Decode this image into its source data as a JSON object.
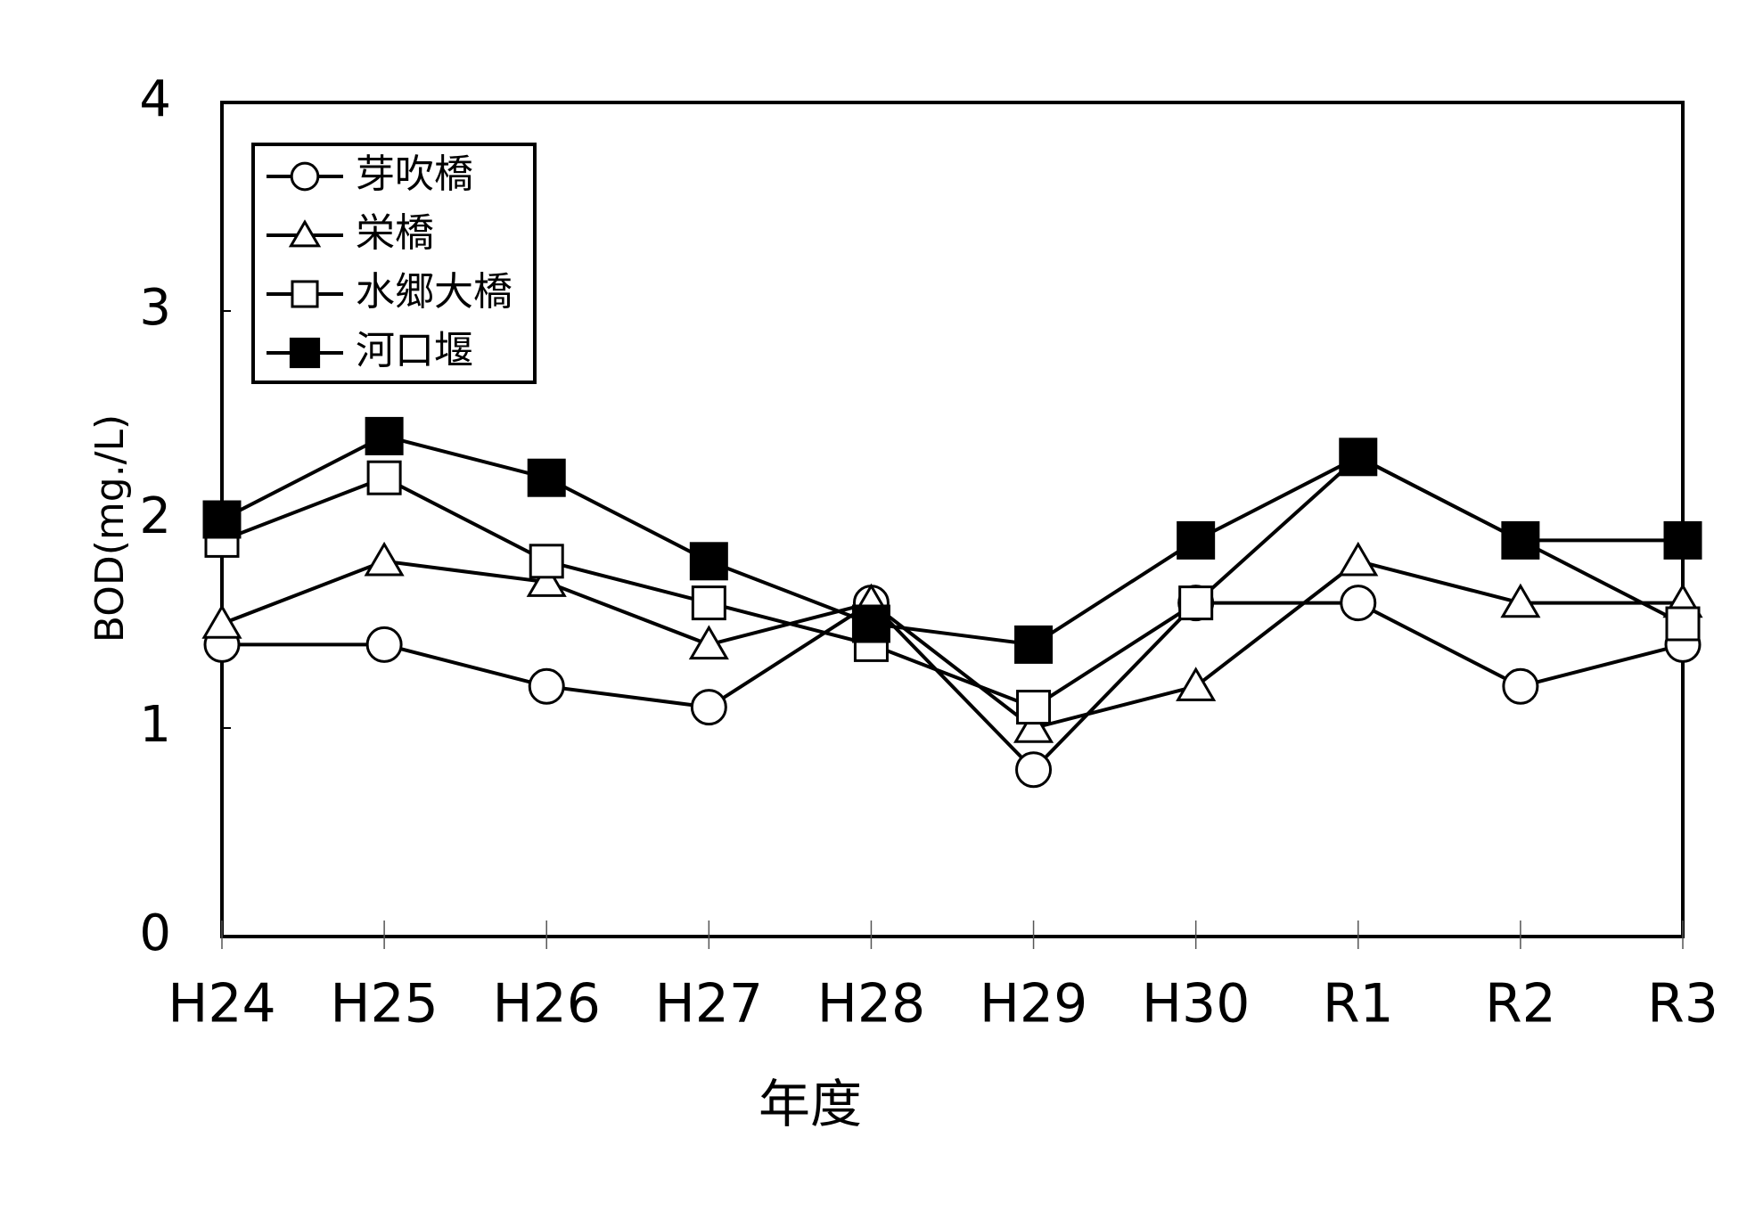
{
  "chart_data": {
    "type": "line",
    "x_label": "年度",
    "y_label": "BOD(mg./L)",
    "categories": [
      "H24",
      "H25",
      "H26",
      "H27",
      "H28",
      "H29",
      "H30",
      "R1",
      "R2",
      "R3"
    ],
    "series": [
      {
        "name": "芽吹橋",
        "color": "#000000",
        "marker": "circle",
        "values": [
          1.4,
          1.4,
          1.2,
          1.1,
          1.6,
          0.8,
          1.6,
          1.6,
          1.2,
          1.4
        ]
      },
      {
        "name": "栄橋",
        "color": "#000000",
        "marker": "triangle",
        "values": [
          1.5,
          1.8,
          1.7,
          1.4,
          1.6,
          1.0,
          1.2,
          1.8,
          1.6,
          1.6
        ]
      },
      {
        "name": "水郷大橋",
        "color": "#000000",
        "marker": "square",
        "values": [
          1.9,
          2.2,
          1.8,
          1.6,
          1.4,
          1.1,
          1.6,
          2.3,
          1.9,
          1.5
        ]
      },
      {
        "name": "河口堰",
        "color": "#000000",
        "marker": "filled-square",
        "values": [
          2.0,
          2.4,
          2.2,
          1.8,
          1.5,
          1.4,
          1.9,
          2.3,
          1.9,
          1.9
        ]
      }
    ],
    "ylim": [
      0,
      4
    ],
    "yticks": [
      0,
      1,
      2,
      3,
      4
    ],
    "grid": false,
    "legend": "upper left"
  }
}
